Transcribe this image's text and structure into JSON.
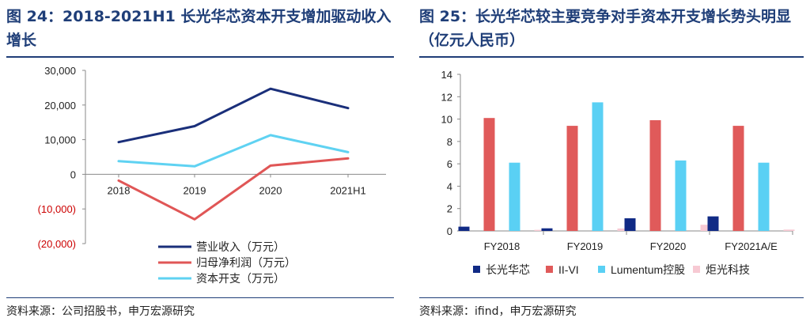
{
  "left": {
    "title": "图 24：2018-2021H1 长光华芯资本开支增加驱动收入增长",
    "source": "资料来源：公司招股书，申万宏源研究",
    "colors": {
      "revenue": "#1a2f7a",
      "net_profit": "#e05656",
      "capex": "#5fd2f2",
      "negative_tick": "#cc0000"
    }
  },
  "right": {
    "title": "图 25：长光华芯较主要竞争对手资本开支增长势头明显（亿元人民币）",
    "source": "资料来源：ifind，申万宏源研究",
    "colors": {
      "changguang": "#102a85",
      "iivi": "#e05a5a",
      "lumentum": "#5ad0f4",
      "juguang": "#f7c9d3"
    }
  },
  "chart_data": [
    {
      "type": "line",
      "title": "2018-2021H1 长光华芯资本开支增加驱动收入增长",
      "categories": [
        "2018",
        "2019",
        "2020",
        "2021H1"
      ],
      "ylim": [
        -20000,
        30000
      ],
      "yticks": [
        "30,000",
        "20,000",
        "10,000",
        "0",
        "(10,000)",
        "(20,000)"
      ],
      "ytick_values": [
        30000,
        20000,
        10000,
        0,
        -10000,
        -20000
      ],
      "series": [
        {
          "name": "营业收入（万元）",
          "values": [
            9300,
            13900,
            24700,
            19100
          ]
        },
        {
          "name": "归母净利润（万元）",
          "values": [
            -1800,
            -13000,
            2500,
            4600
          ]
        },
        {
          "name": "资本开支（万元）",
          "values": [
            3800,
            2300,
            11300,
            6400
          ]
        }
      ],
      "legend": "bottom-center"
    },
    {
      "type": "bar",
      "title": "长光华芯较主要竞争对手资本开支增长势头明显（亿元人民币）",
      "categories": [
        "FY2018",
        "FY2019",
        "FY2020",
        "FY2021A/E"
      ],
      "ylim": [
        0,
        14
      ],
      "yticks": [
        "0",
        "2",
        "4",
        "6",
        "8",
        "10",
        "12",
        "14"
      ],
      "series": [
        {
          "name": "长光华芯",
          "values": [
            0.38,
            0.23,
            1.13,
            1.3
          ]
        },
        {
          "name": "II-VI",
          "values": [
            10.1,
            9.4,
            9.9,
            9.4
          ]
        },
        {
          "name": "Lumentum控股",
          "values": [
            6.1,
            11.5,
            6.3,
            6.1
          ]
        },
        {
          "name": "炬光科技",
          "values": [
            0.1,
            0.22,
            0.55,
            0.12
          ]
        }
      ],
      "legend": "bottom-center"
    }
  ]
}
